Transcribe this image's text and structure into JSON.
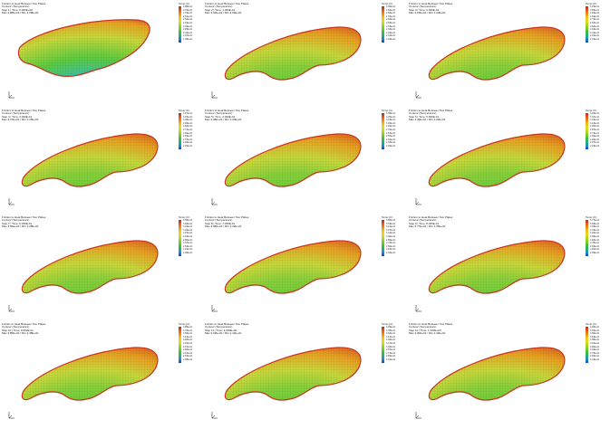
{
  "panels": [
    {
      "header": [
        "Friction to Heat Between Two Plates",
        "Contour (Temperature)",
        "Step 1 | Time: 0.000E+00",
        "Max 2.88E+01 / Min 1.99E+01"
      ],
      "legend_title": "Temp (C)",
      "legend_values": [
        "2.88E+01",
        "2.79E+01",
        "2.70E+01",
        "2.61E+01",
        "2.52E+01",
        "2.43E+01",
        "2.34E+01",
        "2.25E+01",
        "2.16E+01",
        "2.07E+01",
        "1.99E+01"
      ]
    },
    {
      "header": [
        "Friction to Heat Between Two Plates",
        "Contour (Temperature)",
        "Step 2 | Time: 1.000E-01",
        "Max 3.02E+01 / Min 2.04E+01"
      ],
      "legend_title": "Temp (C)",
      "legend_values": [
        "3.02E+01",
        "2.92E+01",
        "2.82E+01",
        "2.73E+01",
        "2.63E+01",
        "2.53E+01",
        "2.43E+01",
        "2.33E+01",
        "2.24E+01",
        "2.14E+01",
        "2.04E+01"
      ]
    },
    {
      "header": [
        "Friction to Heat Between Two Plates",
        "Contour (Temperature)",
        "Step 3 | Time: 2.000E-01",
        "Max 3.15E+01 / Min 2.10E+01"
      ],
      "legend_title": "Temp (C)",
      "legend_values": [
        "3.15E+01",
        "3.05E+01",
        "2.94E+01",
        "2.84E+01",
        "2.73E+01",
        "2.63E+01",
        "2.52E+01",
        "2.42E+01",
        "2.31E+01",
        "2.21E+01",
        "2.10E+01"
      ]
    },
    {
      "header": [
        "Friction to Heat Between Two Plates",
        "Contour (Temperature)",
        "Step 4 | Time: 3.000E-01",
        "Max 3.27E+01 / Min 2.15E+01"
      ],
      "legend_title": "Temp (C)",
      "legend_values": [
        "3.27E+01",
        "3.16E+01",
        "3.05E+01",
        "2.93E+01",
        "2.82E+01",
        "2.71E+01",
        "2.60E+01",
        "2.49E+01",
        "2.37E+01",
        "2.26E+01",
        "2.15E+01"
      ]
    },
    {
      "header": [
        "Friction to Heat Between Two Plates",
        "Contour (Temperature)",
        "Step 5 | Time: 4.000E-01",
        "Max 3.38E+01 / Min 2.20E+01"
      ],
      "legend_title": "Temp (C)",
      "legend_values": [
        "3.38E+01",
        "3.26E+01",
        "3.14E+01",
        "3.03E+01",
        "2.91E+01",
        "2.79E+01",
        "2.67E+01",
        "2.55E+01",
        "2.44E+01",
        "2.32E+01",
        "2.20E+01"
      ]
    },
    {
      "header": [
        "Friction to Heat Between Two Plates",
        "Contour (Temperature)",
        "Step 6 | Time: 5.000E-01",
        "Max 3.49E+01 / Min 2.24E+01"
      ],
      "legend_title": "Temp (C)",
      "legend_values": [
        "3.49E+01",
        "3.37E+01",
        "3.24E+01",
        "3.12E+01",
        "2.99E+01",
        "2.87E+01",
        "2.74E+01",
        "2.62E+01",
        "2.49E+01",
        "2.37E+01",
        "2.24E+01"
      ]
    },
    {
      "header": [
        "Friction to Heat Between Two Plates",
        "Contour (Temperature)",
        "Step 7 | Time: 6.000E-01",
        "Max 3.59E+01 / Min 2.28E+01"
      ],
      "legend_title": "Temp (C)",
      "legend_values": [
        "3.59E+01",
        "3.46E+01",
        "3.33E+01",
        "3.20E+01",
        "3.07E+01",
        "2.94E+01",
        "2.80E+01",
        "2.67E+01",
        "2.54E+01",
        "2.41E+01",
        "2.28E+01"
      ]
    },
    {
      "header": [
        "Friction to Heat Between Two Plates",
        "Contour (Temperature)",
        "Step 8 | Time: 7.000E-01",
        "Max 3.68E+01 / Min 2.32E+01"
      ],
      "legend_title": "Temp (C)",
      "legend_values": [
        "3.68E+01",
        "3.54E+01",
        "3.41E+01",
        "3.27E+01",
        "3.14E+01",
        "3.00E+01",
        "2.86E+01",
        "2.73E+01",
        "2.59E+01",
        "2.46E+01",
        "2.32E+01"
      ]
    },
    {
      "header": [
        "Friction to Heat Between Two Plates",
        "Contour (Temperature)",
        "Step 9 | Time: 8.000E-01",
        "Max 3.77E+01 / Min 2.35E+01"
      ],
      "legend_title": "Temp (C)",
      "legend_values": [
        "3.77E+01",
        "3.63E+01",
        "3.49E+01",
        "3.34E+01",
        "3.20E+01",
        "3.06E+01",
        "2.92E+01",
        "2.78E+01",
        "2.63E+01",
        "2.49E+01",
        "2.35E+01"
      ]
    },
    {
      "header": [
        "Friction to Heat Between Two Plates",
        "Contour (Temperature)",
        "Step 10 | Time: 9.000E-01",
        "Max 3.85E+01 / Min 2.38E+01"
      ],
      "legend_title": "Temp (C)",
      "legend_values": [
        "3.85E+01",
        "3.70E+01",
        "3.56E+01",
        "3.41E+01",
        "3.26E+01",
        "3.12E+01",
        "2.97E+01",
        "2.82E+01",
        "2.67E+01",
        "2.53E+01",
        "2.38E+01"
      ]
    },
    {
      "header": [
        "Friction to Heat Between Two Plates",
        "Contour (Temperature)",
        "Step 11 | Time: 1.000E+00",
        "Max 3.93E+01 / Min 2.41E+01"
      ],
      "legend_title": "Temp (C)",
      "legend_values": [
        "3.93E+01",
        "3.78E+01",
        "3.63E+01",
        "3.47E+01",
        "3.32E+01",
        "3.17E+01",
        "3.02E+01",
        "2.87E+01",
        "2.71E+01",
        "2.56E+01",
        "2.41E+01"
      ]
    },
    {
      "header": [
        "Friction to Heat Between Two Plates",
        "Contour (Temperature)",
        "Step 12 | Time: 1.100E+00",
        "Max 4.00E+01 / Min 2.44E+01"
      ],
      "legend_title": "Temp (C)",
      "legend_values": [
        "4.00E+01",
        "3.84E+01",
        "3.69E+01",
        "3.53E+01",
        "3.38E+01",
        "3.22E+01",
        "3.06E+01",
        "2.91E+01",
        "2.75E+01",
        "2.60E+01",
        "2.44E+01"
      ]
    }
  ],
  "colors": {
    "hot": "#c8321e",
    "warm": "#e8a020",
    "mid": "#c8d83a",
    "cool": "#5ccb3e",
    "cold": "#2a7ed6"
  }
}
